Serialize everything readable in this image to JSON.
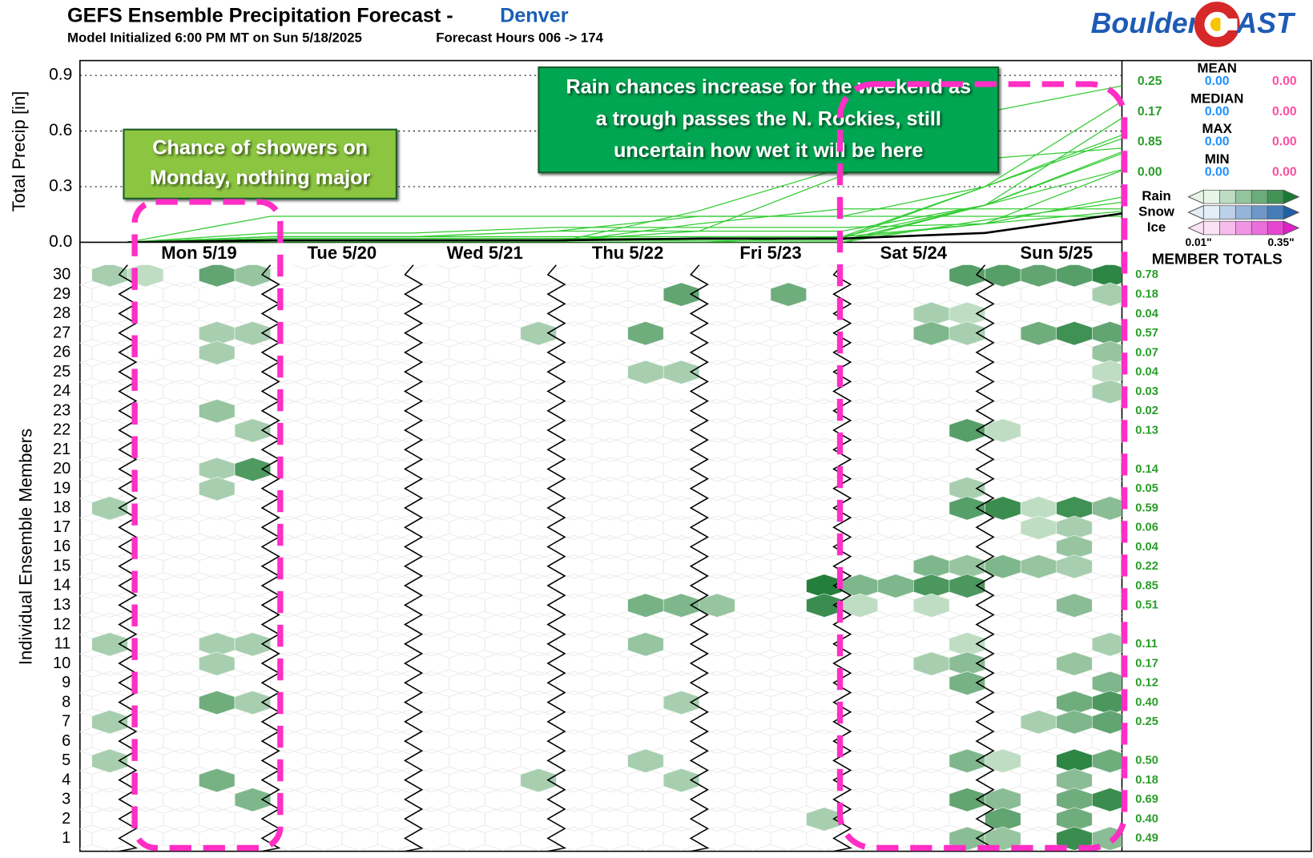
{
  "chart_data": {
    "type": "ensemble",
    "title": "GEFS Ensemble Precipitation Forecast -",
    "location": "Denver",
    "subtitle": "Model Initialized 6:00 PM MT on Sun 5/18/2025",
    "hours_label": "Forecast Hours 006 -> 174",
    "logo": [
      "Boulder",
      "AST"
    ],
    "ylabel": "Total Precip [in]",
    "members_label": "Individual Ensemble Members",
    "ylim": [
      0,
      0.98
    ],
    "yticks": [
      {
        "value": 0,
        "label": "0.0"
      },
      0.3,
      0.6,
      0.9
    ],
    "xlim": [
      -2,
      173
    ],
    "days": [
      "Mon 5/19",
      "Tue 5/20",
      "Wed 5/21",
      "Thu 5/22",
      "Fri 5/23",
      "Sat 5/24",
      "Sun 5/25"
    ],
    "x": [
      6,
      30,
      54,
      78,
      102,
      126,
      150,
      174
    ],
    "line_color": "#33cc33",
    "mean_color": "#000000",
    "lines": [
      {
        "values": [
          0,
          0.01,
          0.01,
          0.01,
          0.06,
          0.36,
          0.7,
          0.85
        ]
      },
      {
        "values": [
          0,
          0.03,
          0.03,
          0.03,
          0.03,
          0.03,
          0.3,
          0.78
        ]
      },
      {
        "values": [
          0,
          0.01,
          0.01,
          0.01,
          0.01,
          0.01,
          0.2,
          0.69
        ]
      },
      {
        "values": [
          0,
          0.02,
          0.02,
          0.02,
          0.02,
          0.02,
          0.3,
          0.59
        ]
      },
      {
        "values": [
          0,
          0.03,
          0.03,
          0.06,
          0.14,
          0.14,
          0.3,
          0.57
        ]
      },
      {
        "values": [
          0,
          0,
          0,
          0,
          0.17,
          0.4,
          0.45,
          0.51
        ]
      },
      {
        "values": [
          0,
          0.03,
          0.03,
          0.06,
          0.06,
          0.06,
          0.2,
          0.5
        ]
      },
      {
        "values": [
          0,
          0.05,
          0.05,
          0.08,
          0.08,
          0.08,
          0.1,
          0.4
        ]
      },
      {
        "values": [
          0,
          0,
          0,
          0,
          0,
          0.03,
          0.2,
          0.4
        ]
      },
      {
        "values": [
          0,
          0,
          0,
          0,
          0,
          0,
          0.2,
          0.49
        ]
      },
      {
        "values": [
          0,
          0.02,
          0.02,
          0.02,
          0.02,
          0.02,
          0.1,
          0.25
        ]
      },
      {
        "values": [
          0,
          0,
          0,
          0,
          0,
          0,
          0.12,
          0.22
        ]
      },
      {
        "values": [
          0,
          0.14,
          0.14,
          0.14,
          0.14,
          0.14,
          0.14,
          0.14
        ]
      },
      {
        "values": [
          0,
          0,
          0,
          0,
          0.1,
          0.18,
          0.18,
          0.18
        ]
      },
      {
        "values": [
          0,
          0.03,
          0.03,
          0.03,
          0.03,
          0.03,
          0.1,
          0.17
        ]
      }
    ],
    "mean": [
      0,
      0.01,
      0.01,
      0.01,
      0.02,
      0.02,
      0.05,
      0.16
    ],
    "members": [
      1,
      2,
      3,
      4,
      5,
      6,
      7,
      8,
      9,
      10,
      11,
      12,
      13,
      14,
      15,
      16,
      17,
      18,
      19,
      20,
      21,
      22,
      23,
      24,
      25,
      26,
      27,
      28,
      29,
      30
    ],
    "member_totals": [
      "0.49",
      "0.40",
      "0.69",
      "0.18",
      "0.50",
      null,
      "0.25",
      "0.40",
      "0.12",
      "0.17",
      "0.11",
      null,
      "0.51",
      "0.85",
      "0.22",
      "0.04",
      "0.06",
      "0.59",
      "0.05",
      "0.14",
      null,
      "0.13",
      "0.02",
      "0.03",
      "0.04",
      "0.07",
      "0.57",
      "0.04",
      "0.18",
      "0.78"
    ],
    "cells": [
      [
        30,
        6,
        0.03
      ],
      [
        30,
        12,
        0.02
      ],
      [
        30,
        24,
        0.1
      ],
      [
        30,
        30,
        0.04
      ],
      [
        30,
        150,
        0.12
      ],
      [
        30,
        156,
        0.12
      ],
      [
        30,
        162,
        0.1
      ],
      [
        30,
        168,
        0.12
      ],
      [
        30,
        174,
        0.25
      ],
      [
        29,
        102,
        0.1
      ],
      [
        29,
        120,
        0.08
      ],
      [
        29,
        174,
        0.03
      ],
      [
        28,
        144,
        0.03
      ],
      [
        28,
        150,
        0.02
      ],
      [
        27,
        24,
        0.03
      ],
      [
        27,
        30,
        0.03
      ],
      [
        27,
        78,
        0.03
      ],
      [
        27,
        96,
        0.08
      ],
      [
        27,
        144,
        0.06
      ],
      [
        27,
        150,
        0.03
      ],
      [
        27,
        162,
        0.08
      ],
      [
        27,
        168,
        0.18
      ],
      [
        27,
        174,
        0.1
      ],
      [
        26,
        24,
        0.03
      ],
      [
        26,
        174,
        0.04
      ],
      [
        25,
        96,
        0.03
      ],
      [
        25,
        102,
        0.03
      ],
      [
        25,
        174,
        0.02
      ],
      [
        24,
        174,
        0.03
      ],
      [
        23,
        24,
        0.04
      ],
      [
        22,
        30,
        0.03
      ],
      [
        22,
        150,
        0.12
      ],
      [
        22,
        156,
        0.02
      ],
      [
        20,
        24,
        0.03
      ],
      [
        20,
        30,
        0.14
      ],
      [
        19,
        24,
        0.03
      ],
      [
        19,
        150,
        0.03
      ],
      [
        18,
        6,
        0.03
      ],
      [
        18,
        150,
        0.12
      ],
      [
        18,
        156,
        0.2
      ],
      [
        18,
        162,
        0.02
      ],
      [
        18,
        168,
        0.18
      ],
      [
        18,
        174,
        0.05
      ],
      [
        17,
        162,
        0.02
      ],
      [
        17,
        168,
        0.03
      ],
      [
        16,
        168,
        0.04
      ],
      [
        15,
        144,
        0.06
      ],
      [
        15,
        150,
        0.04
      ],
      [
        15,
        156,
        0.06
      ],
      [
        15,
        162,
        0.04
      ],
      [
        15,
        168,
        0.03
      ],
      [
        14,
        126,
        0.3
      ],
      [
        14,
        132,
        0.06
      ],
      [
        14,
        138,
        0.06
      ],
      [
        14,
        144,
        0.15
      ],
      [
        14,
        150,
        0.15
      ],
      [
        13,
        96,
        0.07
      ],
      [
        13,
        102,
        0.06
      ],
      [
        13,
        108,
        0.04
      ],
      [
        13,
        126,
        0.2
      ],
      [
        13,
        132,
        0.02
      ],
      [
        13,
        144,
        0.02
      ],
      [
        13,
        168,
        0.05
      ],
      [
        11,
        6,
        0.03
      ],
      [
        11,
        24,
        0.03
      ],
      [
        11,
        30,
        0.03
      ],
      [
        11,
        96,
        0.04
      ],
      [
        11,
        150,
        0.02
      ],
      [
        11,
        174,
        0.03
      ],
      [
        10,
        24,
        0.03
      ],
      [
        10,
        144,
        0.03
      ],
      [
        10,
        150,
        0.05
      ],
      [
        10,
        168,
        0.04
      ],
      [
        9,
        150,
        0.07
      ],
      [
        9,
        174,
        0.06
      ],
      [
        8,
        24,
        0.08
      ],
      [
        8,
        30,
        0.03
      ],
      [
        8,
        102,
        0.03
      ],
      [
        8,
        168,
        0.08
      ],
      [
        8,
        174,
        0.15
      ],
      [
        7,
        6,
        0.03
      ],
      [
        7,
        162,
        0.03
      ],
      [
        7,
        168,
        0.06
      ],
      [
        7,
        174,
        0.1
      ],
      [
        5,
        6,
        0.03
      ],
      [
        5,
        96,
        0.03
      ],
      [
        5,
        150,
        0.06
      ],
      [
        5,
        156,
        0.02
      ],
      [
        5,
        168,
        0.25
      ],
      [
        5,
        174,
        0.08
      ],
      [
        4,
        24,
        0.07
      ],
      [
        4,
        78,
        0.03
      ],
      [
        4,
        102,
        0.03
      ],
      [
        4,
        168,
        0.05
      ],
      [
        3,
        30,
        0.06
      ],
      [
        3,
        150,
        0.1
      ],
      [
        3,
        156,
        0.05
      ],
      [
        3,
        168,
        0.08
      ],
      [
        3,
        174,
        0.2
      ],
      [
        2,
        126,
        0.03
      ],
      [
        2,
        156,
        0.1
      ],
      [
        2,
        168,
        0.08
      ],
      [
        1,
        150,
        0.05
      ],
      [
        1,
        156,
        0.04
      ],
      [
        1,
        168,
        0.2
      ],
      [
        1,
        174,
        0.05
      ]
    ],
    "stats": [
      {
        "label": "MEAN",
        "values": [
          "0.25",
          "0.00",
          "0.00"
        ]
      },
      {
        "label": "MEDIAN",
        "values": [
          "0.17",
          "0.00",
          "0.00"
        ]
      },
      {
        "label": "MAX",
        "values": [
          "0.85",
          "0.00",
          "0.00"
        ]
      },
      {
        "label": "MIN",
        "values": [
          "0.00",
          "0.00",
          "0.00"
        ]
      }
    ],
    "stat_colors": [
      "#2a9d2a",
      "#1e90ff",
      "#ff4fa3"
    ],
    "ptypes": [
      {
        "name": "Rain",
        "colors": [
          "#e6f5e6",
          "#1a7a33"
        ]
      },
      {
        "name": "Snow",
        "colors": [
          "#e3eef8",
          "#1f5fa8"
        ]
      },
      {
        "name": "Ice",
        "colors": [
          "#fbe3f5",
          "#e020c8"
        ]
      }
    ],
    "colorbar": [
      {
        "value": 0.01,
        "label": "0.01\""
      },
      {
        "value": 0.35,
        "label": "0.35\""
      }
    ],
    "totals_label": "MEMBER TOTALS",
    "annotations": [
      {
        "lines": [
          "Chance of showers on",
          "Monday, nothing major"
        ],
        "color": "#8cc63f"
      },
      {
        "lines": [
          "Rain chances increase for the weekend as",
          "a trough passes the N. Rockies, still",
          "uncertain how wet it will be here"
        ],
        "color": "#00a651"
      }
    ]
  }
}
